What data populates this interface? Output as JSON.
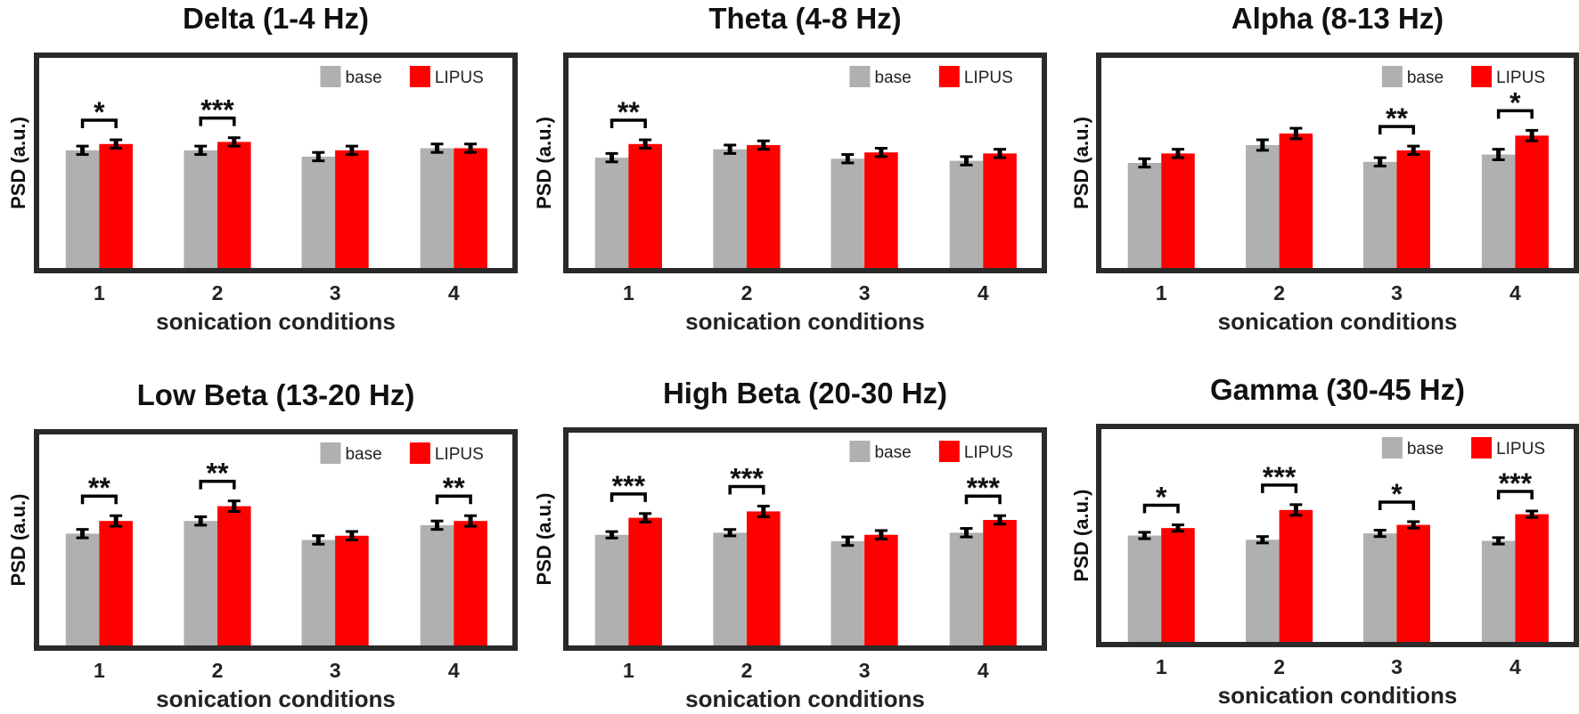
{
  "chart_data": [
    {
      "type": "bar",
      "title": "Delta (1-4 Hz)",
      "xlabel": "sonication conditions",
      "ylabel": "PSD (a.u.)",
      "ylim": [
        0,
        1
      ],
      "categories": [
        "1",
        "2",
        "3",
        "4"
      ],
      "series": [
        {
          "name": "base",
          "color": "#b0b0b0",
          "values": [
            0.56,
            0.56,
            0.53,
            0.57
          ],
          "errors": [
            0.02,
            0.02,
            0.02,
            0.02
          ]
        },
        {
          "name": "LIPUS",
          "color": "#ff0000",
          "values": [
            0.59,
            0.6,
            0.56,
            0.57
          ],
          "errors": [
            0.02,
            0.02,
            0.02,
            0.02
          ]
        }
      ],
      "significance": [
        "*",
        "***",
        "",
        ""
      ],
      "legend": "top-right",
      "grid": false
    },
    {
      "type": "bar",
      "title": "Theta (4-8 Hz)",
      "xlabel": "sonication conditions",
      "ylabel": "PSD (a.u.)",
      "ylim": [
        0,
        1
      ],
      "categories": [
        "1",
        "2",
        "3",
        "4"
      ],
      "series": [
        {
          "name": "base",
          "color": "#b0b0b0",
          "values": [
            0.525,
            0.565,
            0.52,
            0.51
          ],
          "errors": [
            0.02,
            0.02,
            0.02,
            0.02
          ]
        },
        {
          "name": "LIPUS",
          "color": "#ff0000",
          "values": [
            0.59,
            0.585,
            0.55,
            0.545
          ],
          "errors": [
            0.02,
            0.02,
            0.02,
            0.02
          ]
        }
      ],
      "significance": [
        "**",
        "",
        "",
        ""
      ],
      "legend": "top-right",
      "grid": false
    },
    {
      "type": "bar",
      "title": "Alpha (8-13 Hz)",
      "xlabel": "sonication conditions",
      "ylabel": "PSD (a.u.)",
      "ylim": [
        0,
        1
      ],
      "categories": [
        "1",
        "2",
        "3",
        "4"
      ],
      "series": [
        {
          "name": "base",
          "color": "#b0b0b0",
          "values": [
            0.5,
            0.585,
            0.505,
            0.54
          ],
          "errors": [
            0.02,
            0.025,
            0.02,
            0.025
          ]
        },
        {
          "name": "LIPUS",
          "color": "#ff0000",
          "values": [
            0.545,
            0.64,
            0.56,
            0.63
          ],
          "errors": [
            0.02,
            0.025,
            0.02,
            0.025
          ]
        }
      ],
      "significance": [
        "",
        "",
        "**",
        "*"
      ],
      "legend": "top-right",
      "grid": false
    },
    {
      "type": "bar",
      "title": "Low Beta (13-20 Hz)",
      "xlabel": "sonication conditions",
      "ylabel": "PSD (a.u.)",
      "ylim": [
        0,
        1
      ],
      "categories": [
        "1",
        "2",
        "3",
        "4"
      ],
      "series": [
        {
          "name": "base",
          "color": "#b0b0b0",
          "values": [
            0.53,
            0.59,
            0.5,
            0.57
          ],
          "errors": [
            0.02,
            0.02,
            0.02,
            0.02
          ]
        },
        {
          "name": "LIPUS",
          "color": "#ff0000",
          "values": [
            0.59,
            0.66,
            0.52,
            0.59
          ],
          "errors": [
            0.025,
            0.025,
            0.02,
            0.025
          ]
        }
      ],
      "significance": [
        "**",
        "**",
        "",
        "**"
      ],
      "legend": "top-right",
      "grid": false
    },
    {
      "type": "bar",
      "title": "High Beta (20-30 Hz)",
      "xlabel": "sonication conditions",
      "ylabel": "PSD (a.u.)",
      "ylim": [
        0,
        1
      ],
      "categories": [
        "1",
        "2",
        "3",
        "4"
      ],
      "series": [
        {
          "name": "base",
          "color": "#b0b0b0",
          "values": [
            0.52,
            0.53,
            0.49,
            0.53
          ],
          "errors": [
            0.015,
            0.015,
            0.02,
            0.02
          ]
        },
        {
          "name": "LIPUS",
          "color": "#ff0000",
          "values": [
            0.6,
            0.63,
            0.52,
            0.59
          ],
          "errors": [
            0.02,
            0.025,
            0.02,
            0.02
          ]
        }
      ],
      "significance": [
        "***",
        "***",
        "",
        "***"
      ],
      "legend": "top-right",
      "grid": false
    },
    {
      "type": "bar",
      "title": "Gamma (30-45 Hz)",
      "xlabel": "sonication conditions",
      "ylabel": "PSD (a.u.)",
      "ylim": [
        0,
        1
      ],
      "categories": [
        "1",
        "2",
        "3",
        "4"
      ],
      "series": [
        {
          "name": "base",
          "color": "#b0b0b0",
          "values": [
            0.5,
            0.48,
            0.51,
            0.475
          ],
          "errors": [
            0.015,
            0.015,
            0.015,
            0.015
          ]
        },
        {
          "name": "LIPUS",
          "color": "#ff0000",
          "values": [
            0.535,
            0.62,
            0.55,
            0.6
          ],
          "errors": [
            0.015,
            0.025,
            0.015,
            0.015
          ]
        }
      ],
      "significance": [
        "*",
        "***",
        "*",
        "***"
      ],
      "legend": "top-right",
      "grid": false
    }
  ]
}
